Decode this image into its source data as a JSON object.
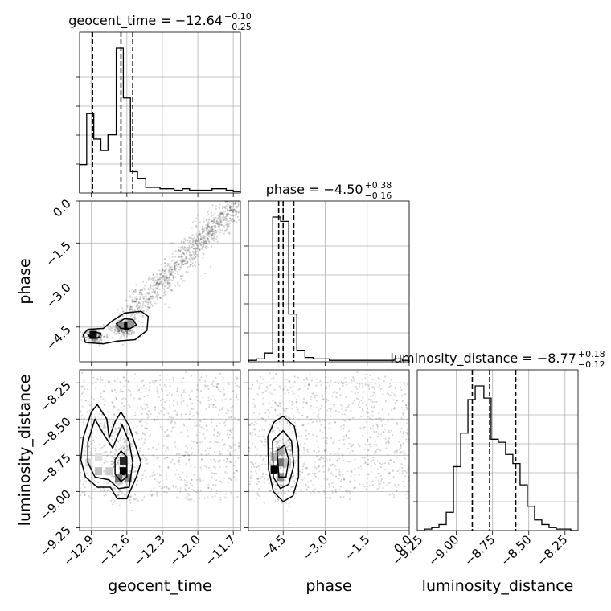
{
  "chart_data": {
    "type": "corner",
    "parameters": [
      "geocent_time",
      "phase",
      "luminosity_distance"
    ],
    "axis_labels": [
      "geocent_time",
      "phase",
      "luminosity_distance"
    ],
    "ranges": {
      "geocent_time": [
        -13.0,
        -11.64
      ],
      "phase": [
        -5.74,
        0.0
      ],
      "luminosity_distance": [
        -9.27,
        -8.16
      ]
    },
    "ticks": {
      "geocent_time": [
        -12.9,
        -12.6,
        -12.3,
        -12.0,
        -11.7
      ],
      "phase": [
        -4.5,
        -3.0,
        -1.5,
        0.0
      ],
      "luminosity_distance": [
        -9.25,
        -9.0,
        -8.75,
        -8.5,
        -8.25
      ]
    },
    "tick_labels": {
      "geocent_time": [
        "−12.9",
        "−12.6",
        "−12.3",
        "−12.0",
        "−11.7"
      ],
      "phase": [
        "−4.5",
        "−3.0",
        "−1.5",
        "0.0"
      ],
      "phase_y": [
        "0.0",
        "−1.5",
        "−3.0",
        "−4.5"
      ],
      "luminosity_distance": [
        "−9.25",
        "−9.00",
        "−8.75",
        "−8.50",
        "−8.25"
      ],
      "luminosity_distance_y": [
        "−8.25",
        "−8.50",
        "−8.75",
        "−9.00",
        "−9.25"
      ]
    },
    "titles": [
      {
        "parameter": "geocent_time",
        "label": "geocent_time",
        "median": "−12.64",
        "plus": "+0.10",
        "minus": "−0.25"
      },
      {
        "parameter": "phase",
        "label": "phase",
        "median": "−4.50",
        "plus": "+0.38",
        "minus": "−0.16"
      },
      {
        "parameter": "luminosity_distance",
        "label": "luminosity_distance",
        "median": "−8.77",
        "plus": "+0.18",
        "minus": "−0.12"
      }
    ],
    "quantile_lines": {
      "geocent_time": [
        -12.89,
        -12.65,
        -12.55
      ],
      "phase": [
        -4.66,
        -4.5,
        -4.12
      ],
      "luminosity_distance": [
        -8.89,
        -8.77,
        -8.59
      ]
    },
    "histograms": {
      "geocent_time": {
        "bin_edges": [
          -13.0,
          -12.94,
          -12.88,
          -12.82,
          -12.76,
          -12.69,
          -12.63,
          -12.57,
          -12.51,
          -12.44,
          -12.38,
          -12.32,
          -12.26,
          -12.2,
          -12.13,
          -12.07,
          -12.01,
          -11.95,
          -11.88,
          -11.82,
          -11.76,
          -11.7,
          -11.64
        ],
        "density": [
          0.2,
          0.56,
          0.38,
          0.3,
          0.41,
          1.02,
          0.67,
          0.15,
          0.1,
          0.04,
          0.04,
          0.03,
          0.03,
          0.02,
          0.03,
          0.02,
          0.02,
          0.02,
          0.03,
          0.03,
          0.02,
          0.01
        ]
      },
      "phase": {
        "bin_edges": [
          -5.74,
          -5.45,
          -5.16,
          -4.87,
          -4.59,
          -4.3,
          -4.01,
          -3.72,
          -3.43,
          -3.14,
          -2.85,
          -2.56,
          -2.28,
          -1.99,
          -1.7,
          -1.41,
          -1.12,
          -0.83,
          -0.54,
          -0.25,
          0.0
        ],
        "density": [
          0.01,
          0.02,
          0.06,
          1.0,
          0.97,
          0.33,
          0.08,
          0.03,
          0.02,
          0.02,
          0.01,
          0.01,
          0.01,
          0.01,
          0.01,
          0.01,
          0.01,
          0.01,
          0.02,
          0.01
        ]
      },
      "luminosity_distance": {
        "bin_edges": [
          -9.27,
          -9.22,
          -9.17,
          -9.12,
          -9.07,
          -9.02,
          -8.97,
          -8.92,
          -8.87,
          -8.81,
          -8.76,
          -8.71,
          -8.66,
          -8.61,
          -8.56,
          -8.51,
          -8.46,
          -8.41,
          -8.36,
          -8.31,
          -8.26,
          -8.21,
          -8.16
        ],
        "density": [
          0.0,
          0.01,
          0.02,
          0.04,
          0.12,
          0.42,
          0.64,
          0.86,
          0.95,
          0.87,
          0.6,
          0.58,
          0.5,
          0.44,
          0.3,
          0.16,
          0.07,
          0.04,
          0.02,
          0.01,
          0.01,
          0.0
        ]
      }
    },
    "pairs": [
      {
        "x": "geocent_time",
        "y": "phase",
        "scatter": [
          {
            "pattern": "correlated_band",
            "x_from": -12.68,
            "x_to": -11.65,
            "y_from": -4.45,
            "y_to": 0.0,
            "spread": 0.32
          },
          {
            "pattern": "cluster",
            "x": -12.88,
            "y": -4.83,
            "sx": 0.05,
            "sy": 0.12
          },
          {
            "pattern": "cluster",
            "x": -12.62,
            "y": -4.55,
            "sx": 0.05,
            "sy": 0.14
          }
        ],
        "contours": [
          [
            [
              -12.97,
              -4.77
            ],
            [
              -12.93,
              -4.58
            ],
            [
              -12.8,
              -4.55
            ],
            [
              -12.73,
              -4.3
            ],
            [
              -12.62,
              -4.0
            ],
            [
              -12.48,
              -3.94
            ],
            [
              -12.42,
              -4.12
            ],
            [
              -12.43,
              -4.62
            ],
            [
              -12.53,
              -4.95
            ],
            [
              -12.68,
              -5.0
            ],
            [
              -12.8,
              -5.1
            ],
            [
              -12.95,
              -5.05
            ]
          ],
          [
            [
              -12.93,
              -4.78
            ],
            [
              -12.88,
              -4.68
            ],
            [
              -12.82,
              -4.72
            ],
            [
              -12.83,
              -4.87
            ],
            [
              -12.9,
              -4.9
            ]
          ],
          [
            [
              -12.69,
              -4.38
            ],
            [
              -12.62,
              -4.2
            ],
            [
              -12.55,
              -4.23
            ],
            [
              -12.52,
              -4.42
            ],
            [
              -12.57,
              -4.55
            ],
            [
              -12.65,
              -4.55
            ]
          ]
        ],
        "density_cells": [
          {
            "x": -12.885,
            "y": -4.78,
            "level": 0.95
          },
          {
            "x": -12.61,
            "y": -4.45,
            "level": 1.0
          },
          {
            "x": -12.655,
            "y": -4.45,
            "level": 0.45
          },
          {
            "x": -12.565,
            "y": -4.38,
            "level": 0.4
          }
        ]
      },
      {
        "x": "geocent_time",
        "y": "luminosity_distance",
        "scatter": [
          {
            "pattern": "uniform",
            "x_from": -13.0,
            "x_to": -11.65,
            "y_from": -9.05,
            "y_to": -8.2
          },
          {
            "pattern": "cluster",
            "x": -12.63,
            "y": -8.82,
            "sx": 0.06,
            "sy": 0.12
          }
        ],
        "contours": [
          [
            [
              -12.97,
              -8.63
            ],
            [
              -12.9,
              -8.45
            ],
            [
              -12.85,
              -8.4
            ],
            [
              -12.77,
              -8.5
            ],
            [
              -12.75,
              -8.63
            ],
            [
              -12.7,
              -8.52
            ],
            [
              -12.65,
              -8.45
            ],
            [
              -12.58,
              -8.55
            ],
            [
              -12.52,
              -8.7
            ],
            [
              -12.48,
              -8.8
            ],
            [
              -12.52,
              -8.9
            ],
            [
              -12.6,
              -9.05
            ],
            [
              -12.68,
              -9.05
            ],
            [
              -12.74,
              -8.97
            ],
            [
              -12.85,
              -8.97
            ],
            [
              -12.95,
              -8.9
            ],
            [
              -12.99,
              -8.78
            ]
          ],
          [
            [
              -12.93,
              -8.66
            ],
            [
              -12.87,
              -8.5
            ],
            [
              -12.8,
              -8.6
            ],
            [
              -12.72,
              -8.7
            ],
            [
              -12.64,
              -8.54
            ],
            [
              -12.58,
              -8.66
            ],
            [
              -12.55,
              -8.8
            ],
            [
              -12.58,
              -8.97
            ],
            [
              -12.67,
              -8.98
            ],
            [
              -12.75,
              -8.92
            ],
            [
              -12.87,
              -8.9
            ],
            [
              -12.93,
              -8.8
            ]
          ],
          [
            [
              -12.65,
              -8.72
            ],
            [
              -12.6,
              -8.76
            ],
            [
              -12.6,
              -8.9
            ],
            [
              -12.65,
              -8.93
            ],
            [
              -12.7,
              -8.88
            ],
            [
              -12.7,
              -8.78
            ]
          ]
        ],
        "density_cells": [
          {
            "x": -12.63,
            "y": -8.86,
            "level": 1.0
          },
          {
            "x": -12.63,
            "y": -8.79,
            "level": 0.85
          },
          {
            "x": -12.67,
            "y": -8.91,
            "level": 0.55
          },
          {
            "x": -12.59,
            "y": -8.91,
            "level": 0.5
          },
          {
            "x": -12.92,
            "y": -8.8,
            "level": 0.15
          },
          {
            "x": -12.84,
            "y": -8.86,
            "level": 0.25
          },
          {
            "x": -12.75,
            "y": -8.86,
            "level": 0.2
          },
          {
            "x": -12.84,
            "y": -8.76,
            "level": 0.12
          }
        ]
      },
      {
        "x": "phase",
        "y": "luminosity_distance",
        "scatter": [
          {
            "pattern": "uniform",
            "x_from": -5.74,
            "x_to": 0.0,
            "y_from": -9.05,
            "y_to": -8.2
          },
          {
            "pattern": "cluster",
            "x": -4.55,
            "y": -8.8,
            "sx": 0.25,
            "sy": 0.12
          }
        ],
        "contours": [
          [
            [
              -5.05,
              -8.62
            ],
            [
              -4.82,
              -8.52
            ],
            [
              -4.5,
              -8.48
            ],
            [
              -4.1,
              -8.55
            ],
            [
              -3.95,
              -8.7
            ],
            [
              -3.95,
              -8.9
            ],
            [
              -4.15,
              -9.03
            ],
            [
              -4.5,
              -9.07
            ],
            [
              -4.85,
              -9.0
            ],
            [
              -5.02,
              -8.85
            ]
          ],
          [
            [
              -4.88,
              -8.65
            ],
            [
              -4.5,
              -8.58
            ],
            [
              -4.2,
              -8.65
            ],
            [
              -4.12,
              -8.82
            ],
            [
              -4.3,
              -8.95
            ],
            [
              -4.6,
              -8.98
            ],
            [
              -4.85,
              -8.9
            ]
          ],
          [
            [
              -4.72,
              -8.72
            ],
            [
              -4.45,
              -8.68
            ],
            [
              -4.3,
              -8.78
            ],
            [
              -4.4,
              -8.9
            ],
            [
              -4.65,
              -8.9
            ]
          ]
        ],
        "density_cells": [
          {
            "x": -4.82,
            "y": -8.85,
            "level": 1.0
          },
          {
            "x": -4.6,
            "y": -8.8,
            "level": 0.55
          },
          {
            "x": -4.6,
            "y": -8.72,
            "level": 0.35
          },
          {
            "x": -4.6,
            "y": -8.9,
            "level": 0.45
          },
          {
            "x": -4.35,
            "y": -8.8,
            "level": 0.25
          },
          {
            "x": -4.82,
            "y": -8.76,
            "level": 0.3
          }
        ]
      }
    ],
    "grid": true,
    "hist_color": "#000000",
    "grid_color": "#b0b0b0",
    "scatter_color": "#000000"
  }
}
